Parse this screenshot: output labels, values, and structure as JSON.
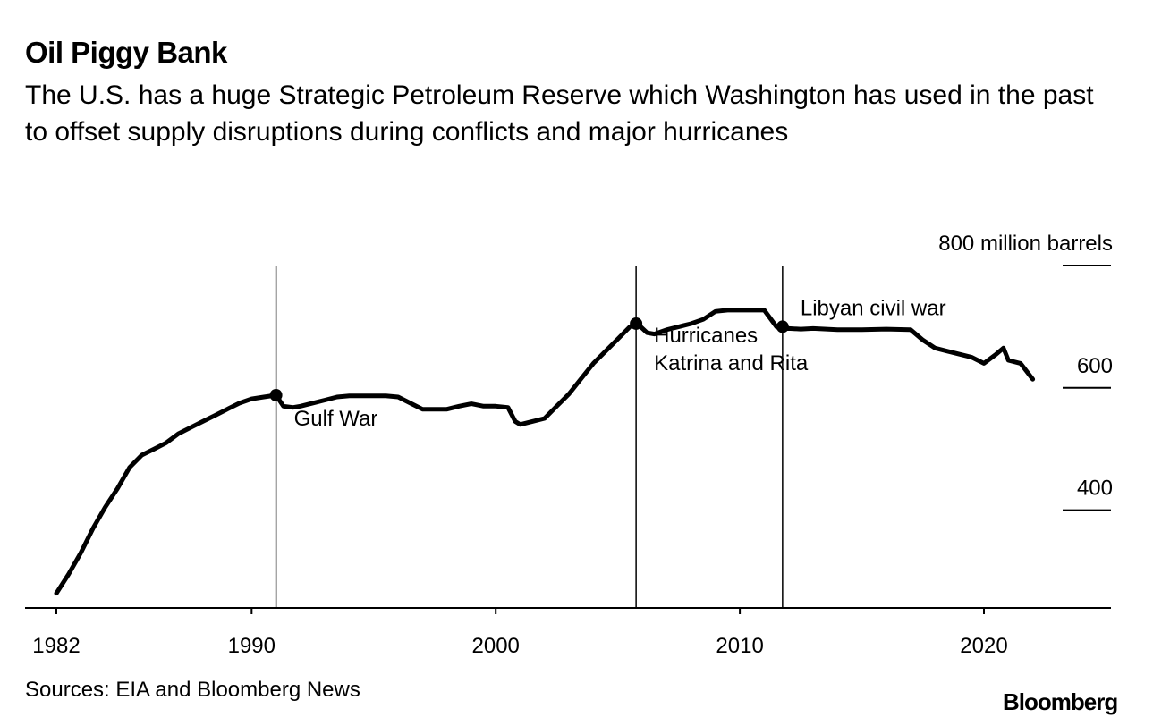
{
  "chart_data": {
    "type": "line",
    "title": "Oil Piggy Bank",
    "subtitle": "The U.S. has a huge Strategic Petroleum Reserve which Washington has used in the past to offset supply disruptions during conflicts and major hurricanes",
    "unit_label": "800 million barrels",
    "ylim": [
      240,
      800
    ],
    "xlim": [
      1981,
      2025
    ],
    "y_ticks": [
      {
        "value": 800,
        "label": "800 million barrels"
      },
      {
        "value": 600,
        "label": "600"
      },
      {
        "value": 400,
        "label": "400"
      }
    ],
    "x_ticks": [
      {
        "value": 1982,
        "label": "1982"
      },
      {
        "value": 1990,
        "label": "1990"
      },
      {
        "value": 2000,
        "label": "2000"
      },
      {
        "value": 2010,
        "label": "2010"
      },
      {
        "value": 2020,
        "label": "2020"
      }
    ],
    "series": [
      {
        "name": "Strategic Petroleum Reserve",
        "x": [
          1982.0,
          1982.5,
          1983.0,
          1983.5,
          1984.0,
          1984.5,
          1985.0,
          1985.5,
          1986.0,
          1986.5,
          1987.0,
          1987.5,
          1988.0,
          1988.5,
          1989.0,
          1989.5,
          1990.0,
          1990.5,
          1991.0,
          1991.3,
          1991.7,
          1992.0,
          1992.5,
          1993.0,
          1993.5,
          1994.0,
          1994.5,
          1995.0,
          1995.5,
          1996.0,
          1996.5,
          1997.0,
          1997.5,
          1998.0,
          1998.5,
          1999.0,
          1999.5,
          2000.0,
          2000.5,
          2000.8,
          2001.0,
          2001.5,
          2002.0,
          2002.5,
          2003.0,
          2003.5,
          2004.0,
          2004.5,
          2005.0,
          2005.5,
          2005.8,
          2006.2,
          2006.5,
          2007.0,
          2007.5,
          2008.0,
          2008.5,
          2009.0,
          2009.5,
          2010.0,
          2010.5,
          2011.0,
          2011.5,
          2011.7,
          2012.0,
          2012.5,
          2013.0,
          2014.0,
          2015.0,
          2016.0,
          2017.0,
          2017.5,
          2018.0,
          2018.5,
          2019.0,
          2019.5,
          2020.0,
          2020.5,
          2020.8,
          2021.0,
          2021.5,
          2022.0
        ],
        "values": [
          264,
          295,
          330,
          370,
          405,
          435,
          470,
          490,
          500,
          510,
          525,
          535,
          545,
          555,
          565,
          575,
          582,
          585,
          588,
          570,
          568,
          570,
          575,
          580,
          585,
          587,
          587,
          587,
          587,
          585,
          575,
          565,
          565,
          565,
          570,
          574,
          570,
          570,
          568,
          545,
          540,
          545,
          550,
          570,
          590,
          615,
          640,
          660,
          680,
          700,
          705,
          690,
          688,
          695,
          700,
          705,
          712,
          725,
          727,
          727,
          727,
          727,
          700,
          696,
          697,
          696,
          697,
          695,
          695,
          696,
          695,
          678,
          665,
          660,
          655,
          650,
          640,
          655,
          665,
          645,
          640,
          614
        ]
      }
    ],
    "annotations": [
      {
        "x": 1991.0,
        "y": 588,
        "label": "Gulf War"
      },
      {
        "x": 2005.75,
        "y": 705,
        "label": "Hurricanes Katrina and Rita",
        "lines": [
          "Hurricanes",
          "Katrina and Rita"
        ]
      },
      {
        "x": 2011.75,
        "y": 700,
        "label": "Libyan civil war"
      }
    ]
  },
  "footer": {
    "source": "Sources: EIA and Bloomberg News",
    "logo": "Bloomberg"
  },
  "colors": {
    "line": "#000000",
    "axis": "#000000",
    "background": "#ffffff"
  }
}
